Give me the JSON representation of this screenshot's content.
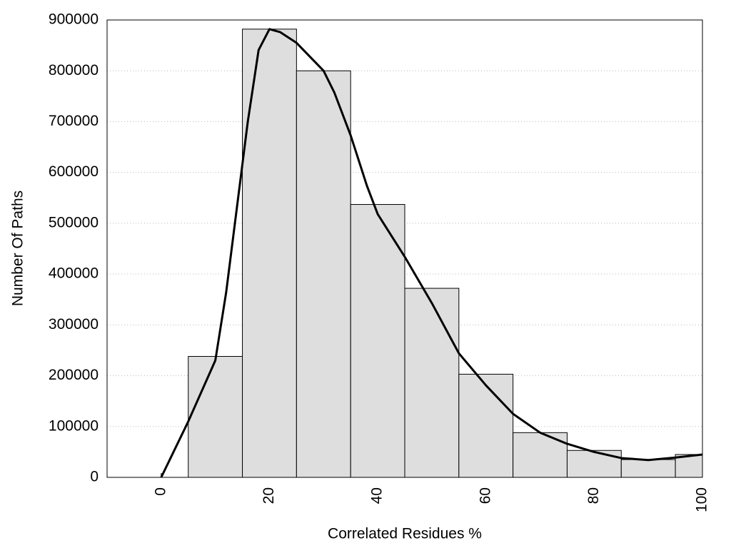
{
  "chart_data": {
    "type": "histogram",
    "xlabel": "Correlated Residues %",
    "ylabel": "Number Of Paths",
    "bins": [
      5,
      15,
      25,
      35,
      45,
      55,
      65,
      75,
      85,
      95,
      100
    ],
    "values": [
      238000,
      882000,
      800000,
      537000,
      372000,
      203000,
      88000,
      53000,
      35000,
      45000
    ],
    "color": "#dedede",
    "curve": {
      "color": "#000000",
      "x": [
        0,
        5,
        10,
        12,
        14,
        16,
        18,
        20,
        22,
        25,
        30,
        32,
        35,
        38,
        40,
        45,
        50,
        55,
        60,
        65,
        70,
        75,
        80,
        85,
        90,
        95,
        100
      ],
      "values": [
        0,
        110000,
        230000,
        364000,
        532000,
        700000,
        841000,
        882000,
        876000,
        855000,
        800000,
        757000,
        673000,
        574000,
        518000,
        434000,
        343000,
        244000,
        181000,
        125000,
        88000,
        66000,
        50000,
        38000,
        34000,
        39000,
        45000
      ]
    },
    "xlim": [
      -10,
      100
    ],
    "ylim": [
      0,
      900000
    ],
    "xticks": [
      0,
      20,
      40,
      60,
      80,
      100
    ],
    "yticks": [
      0,
      100000,
      200000,
      300000,
      400000,
      500000,
      600000,
      700000,
      800000,
      900000
    ],
    "grid": true
  }
}
